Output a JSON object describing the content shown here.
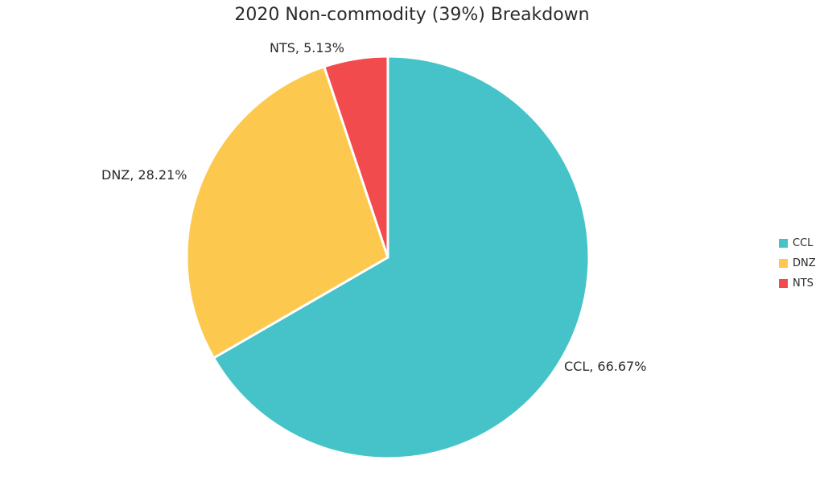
{
  "chart_data": {
    "type": "pie",
    "title": "2020 Non-commodity (39%) Breakdown",
    "categories": [
      "CCL",
      "DNZ",
      "NTS"
    ],
    "values": [
      66.67,
      28.21,
      5.13
    ],
    "colors": [
      "#45c3c9",
      "#fcc84e",
      "#f14b4d"
    ],
    "labels": [
      "CCL, 66.67%",
      "DNZ, 28.21%",
      "NTS, 5.13%"
    ],
    "legend": [
      "CCL",
      "DNZ",
      "NTS"
    ],
    "legend_position": "right"
  }
}
